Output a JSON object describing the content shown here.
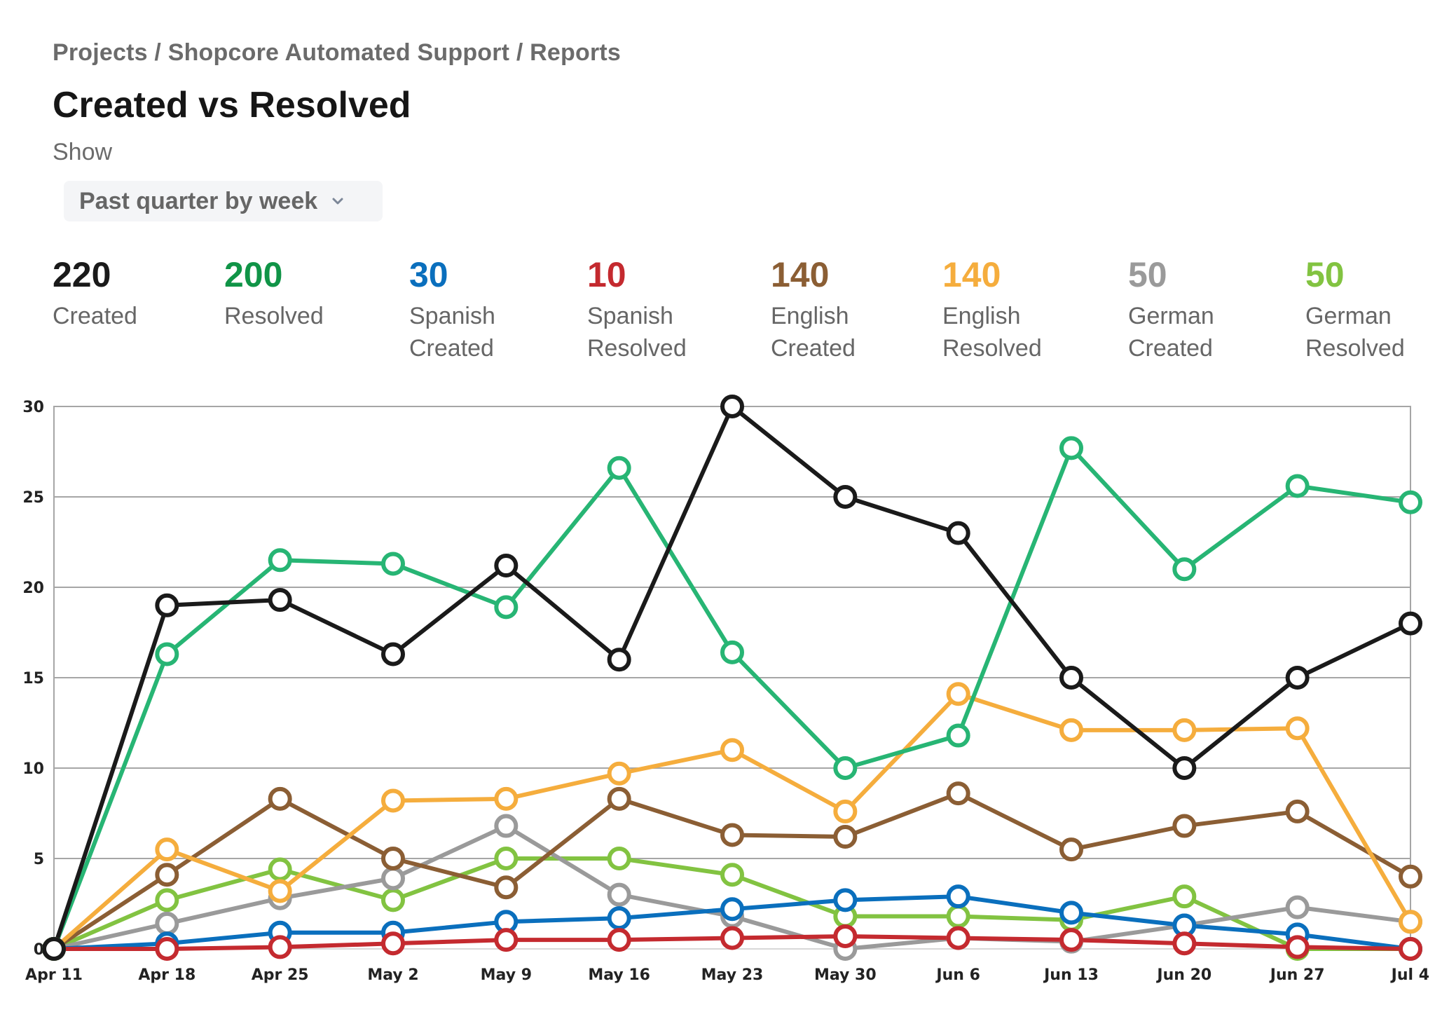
{
  "breadcrumb": {
    "items": [
      "Projects",
      "Shopcore Automated Support",
      "Reports"
    ],
    "text": "Projects / Shopcore Automated Support / Reports"
  },
  "header": {
    "title": "Created vs Resolved",
    "show_label": "Show"
  },
  "range_select": {
    "value": "Past quarter by week",
    "icon": "chevron-down-icon"
  },
  "stats": [
    {
      "value": "220",
      "line1": "Created",
      "line2": "",
      "color": "#1a1a1a"
    },
    {
      "value": "200",
      "line1": "Resolved",
      "line2": "",
      "color": "#109447"
    },
    {
      "value": "30",
      "line1": "Spanish",
      "line2": "Created",
      "color": "#0a6fbd"
    },
    {
      "value": "10",
      "line1": "Spanish",
      "line2": "Resolved",
      "color": "#c42a2f"
    },
    {
      "value": "140",
      "line1": "English",
      "line2": "Created",
      "color": "#8b5e34"
    },
    {
      "value": "140",
      "line1": "English",
      "line2": "Resolved",
      "color": "#f5ad3d"
    },
    {
      "value": "50",
      "line1": "German",
      "line2": "Created",
      "color": "#9a9a9a"
    },
    {
      "value": "50",
      "line1": "German",
      "line2": "Resolved",
      "color": "#82c341"
    }
  ],
  "chart_data": {
    "type": "line",
    "title": "Created vs Resolved",
    "xlabel": "",
    "ylabel": "",
    "x": [
      "Apr 11",
      "Apr 18",
      "Apr 25",
      "May 2",
      "May 9",
      "May 16",
      "May 23",
      "May 30",
      "Jun 6",
      "Jun 13",
      "Jun 20",
      "Jun 27",
      "Jul 4"
    ],
    "ylim": [
      0,
      30
    ],
    "yticks": [
      0,
      5,
      10,
      15,
      20,
      25,
      30
    ],
    "grid": true,
    "legend": "top (summary stats)",
    "series": [
      {
        "name": "German Resolved",
        "color": "#82c341",
        "values": [
          0,
          2.7,
          4.4,
          2.7,
          5,
          5,
          4.1,
          1.8,
          1.8,
          1.6,
          2.9,
          0,
          0
        ]
      },
      {
        "name": "German Created",
        "color": "#9a9a9a",
        "values": [
          0,
          1.4,
          2.8,
          3.9,
          6.8,
          3,
          1.8,
          0,
          0.6,
          0.4,
          1.3,
          2.3,
          1.5
        ]
      },
      {
        "name": "Spanish Created",
        "color": "#0a6fbd",
        "values": [
          0,
          0.3,
          0.9,
          0.9,
          1.5,
          1.7,
          2.2,
          2.7,
          2.9,
          2,
          1.3,
          0.8,
          0
        ]
      },
      {
        "name": "Spanish Resolved",
        "color": "#c42a2f",
        "values": [
          0,
          0,
          0.1,
          0.3,
          0.5,
          0.5,
          0.6,
          0.7,
          0.6,
          0.5,
          0.3,
          0.1,
          0
        ]
      },
      {
        "name": "English Created",
        "color": "#8b5e34",
        "values": [
          0,
          4.1,
          8.3,
          5,
          3.4,
          8.3,
          6.3,
          6.2,
          8.6,
          5.5,
          6.8,
          7.6,
          4
        ]
      },
      {
        "name": "English Resolved",
        "color": "#f5ad3d",
        "values": [
          0,
          5.5,
          3.2,
          8.2,
          8.3,
          9.7,
          11,
          7.6,
          14.1,
          12.1,
          12.1,
          12.2,
          1.5
        ]
      },
      {
        "name": "Resolved",
        "color": "#27b574",
        "values": [
          0,
          16.3,
          21.5,
          21.3,
          18.9,
          26.6,
          16.4,
          10,
          11.8,
          27.7,
          21,
          25.6,
          24.7
        ]
      },
      {
        "name": "Created",
        "color": "#1a1a1a",
        "values": [
          0,
          19,
          19.3,
          16.3,
          21.2,
          16,
          30,
          25,
          23,
          15,
          10,
          15,
          18
        ]
      }
    ]
  }
}
